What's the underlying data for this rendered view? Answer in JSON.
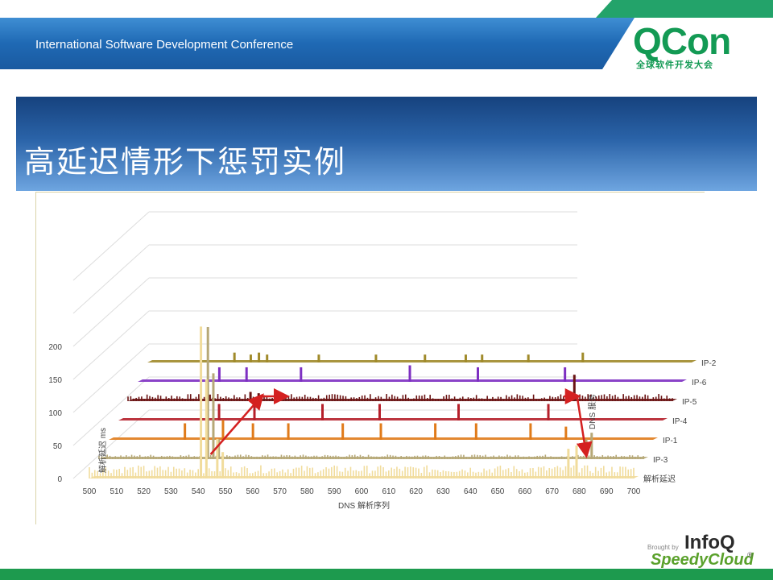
{
  "header": {
    "conference_name": "International Software Development Conference",
    "logo_text": "QCon",
    "logo_subtitle": "全球软件开发大会"
  },
  "slide": {
    "title": "高延迟情形下惩罚实例"
  },
  "footer": {
    "brought_by": "Brought by",
    "infoq": "InfoQ",
    "speedycloud": "SpeedyCloud",
    "registered": "®"
  },
  "colors": {
    "header_blue": "#1f69b4",
    "brand_green": "#139a54",
    "arrow_red": "#d42020"
  },
  "chart_data": {
    "type": "line",
    "style": "3d-ribbon",
    "xlabel": "DNS 解析序列",
    "ylabel": "解析延迟 ms",
    "zlabel": "DNS 服务",
    "x_ticks": [
      500,
      510,
      520,
      530,
      540,
      550,
      560,
      570,
      580,
      590,
      600,
      610,
      620,
      630,
      640,
      650,
      660,
      670,
      680,
      690,
      700
    ],
    "y_ticks": [
      0,
      50,
      100,
      150,
      200
    ],
    "xlim": [
      500,
      700
    ],
    "ylim": [
      0,
      250
    ],
    "series": [
      {
        "name": "解析延迟",
        "color": "#f1dc9c",
        "baseline": 8,
        "spikes": [
          [
            541,
            230
          ],
          [
            543,
            150
          ],
          [
            547,
            60
          ],
          [
            549,
            40
          ],
          [
            676,
            45
          ],
          [
            679,
            50
          ]
        ],
        "noise": 12
      },
      {
        "name": "IP-3",
        "color": "#b6a877",
        "baseline": 3,
        "spikes": [
          [
            540,
            200
          ],
          [
            542,
            130
          ],
          [
            544,
            30
          ],
          [
            679,
            30
          ],
          [
            681,
            40
          ]
        ],
        "noise": 4
      },
      {
        "name": "IP-1",
        "color": "#e07b1a",
        "baseline": 2,
        "spikes": [
          [
            528,
            25
          ],
          [
            542,
            30
          ],
          [
            553,
            25
          ],
          [
            566,
            25
          ],
          [
            586,
            25
          ],
          [
            600,
            25
          ],
          [
            620,
            25
          ],
          [
            635,
            25
          ],
          [
            655,
            25
          ],
          [
            668,
            20
          ]
        ],
        "noise": 0
      },
      {
        "name": "IP-4",
        "color": "#b51f2a",
        "baseline": 2,
        "spikes": [
          [
            537,
            25
          ],
          [
            550,
            25
          ],
          [
            575,
            25
          ],
          [
            596,
            25
          ],
          [
            625,
            25
          ],
          [
            658,
            25
          ]
        ],
        "noise": 0
      },
      {
        "name": "IP-5",
        "color": "#6b1414",
        "baseline": 3,
        "spikes": [
          [
            530,
            10
          ],
          [
            545,
            14
          ],
          [
            548,
            12
          ],
          [
            554,
            12
          ],
          [
            664,
            40
          ]
        ],
        "noise": 8
      },
      {
        "name": "IP-6",
        "color": "#7d2fc2",
        "baseline": 2,
        "spikes": [
          [
            530,
            22
          ],
          [
            540,
            22
          ],
          [
            560,
            22
          ],
          [
            600,
            25
          ],
          [
            625,
            22
          ],
          [
            657,
            22
          ]
        ],
        "noise": 0
      },
      {
        "name": "IP-2",
        "color": "#a08a2a",
        "baseline": 2,
        "spikes": [
          [
            532,
            15
          ],
          [
            538,
            12
          ],
          [
            541,
            15
          ],
          [
            544,
            12
          ],
          [
            563,
            12
          ],
          [
            584,
            12
          ],
          [
            602,
            12
          ],
          [
            617,
            12
          ],
          [
            623,
            12
          ],
          [
            640,
            12
          ],
          [
            660,
            15
          ]
        ],
        "noise": 0
      }
    ],
    "annotations": {
      "arrows": [
        {
          "from": [
            541,
            "IP-3"
          ],
          "to": [
            549,
            "IP-5"
          ]
        },
        {
          "from": [
            549,
            "IP-5"
          ],
          "to": [
            558,
            "IP-5"
          ]
        },
        {
          "from": [
            660,
            "IP-5"
          ],
          "to": [
            665,
            "IP-5"
          ]
        },
        {
          "from": [
            665,
            "IP-5"
          ],
          "to": [
            679,
            "IP-3"
          ]
        }
      ]
    }
  }
}
